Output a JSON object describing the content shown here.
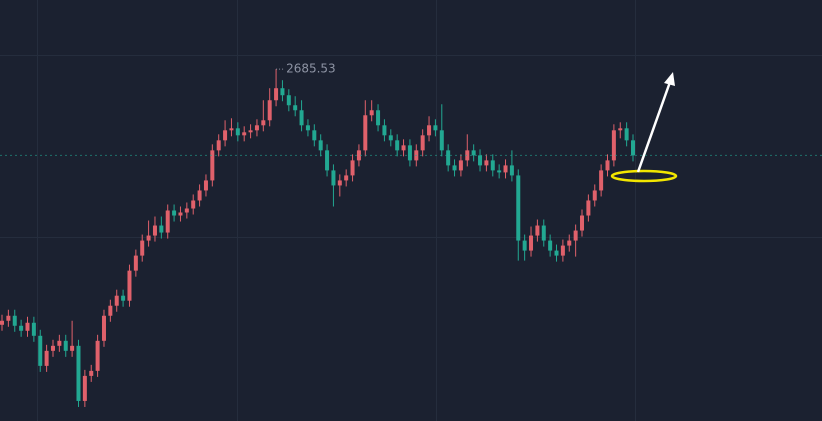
{
  "chart_data": {
    "type": "candlestick",
    "ylim": [
      2510,
      2720
    ],
    "up_color": "#e0616b",
    "down_color": "#22a892",
    "open": [
      2558,
      2560,
      2562.5,
      2557.5,
      2555,
      2559,
      2552.5,
      2537.5,
      2545,
      2547.5,
      2550,
      2545,
      2547.5,
      2520,
      2532.5,
      2535,
      2550,
      2562.5,
      2567.5,
      2572.5,
      2570,
      2585,
      2592.5,
      2600,
      2602.5,
      2607.5,
      2604,
      2615,
      2612.5,
      2614,
      2616,
      2620,
      2625,
      2630,
      2645,
      2650,
      2655,
      2656,
      2652.5,
      2654,
      2655,
      2657.5,
      2660,
      2670,
      2676,
      2672.5,
      2667.5,
      2665,
      2657.5,
      2655,
      2650,
      2645,
      2635,
      2627.5,
      2630,
      2632.5,
      2640,
      2645,
      2662.5,
      2665,
      2657.5,
      2652.5,
      2650,
      2645,
      2647.5,
      2640,
      2645,
      2652.5,
      2657.5,
      2655,
      2645,
      2637.5,
      2635,
      2640,
      2645,
      2642.5,
      2637.5,
      2640,
      2635,
      2634,
      2637.5,
      2632.5,
      2600,
      2595,
      2602.5,
      2607.5,
      2600,
      2595,
      2592.5,
      2597.5,
      2600,
      2605,
      2612.5,
      2620,
      2625,
      2635,
      2640,
      2655,
      2656,
      2650
    ],
    "high": [
      2563,
      2565.5,
      2565.5,
      2560.5,
      2562,
      2562,
      2555.5,
      2548,
      2550.5,
      2553,
      2553,
      2560,
      2550.5,
      2535.5,
      2538,
      2553,
      2565.5,
      2570.5,
      2575.5,
      2575.5,
      2588,
      2595.5,
      2603,
      2610,
      2612,
      2612,
      2618,
      2618,
      2617,
      2619,
      2623,
      2628,
      2633,
      2648,
      2653,
      2660,
      2661,
      2659,
      2657,
      2658,
      2660.5,
      2670,
      2676,
      2685.53,
      2680,
      2675.5,
      2672,
      2670,
      2660.5,
      2658,
      2653,
      2648,
      2638,
      2633,
      2635.5,
      2643,
      2648,
      2670,
      2670,
      2668,
      2660.5,
      2655.5,
      2653,
      2650.5,
      2650.5,
      2648,
      2655.5,
      2662,
      2660.5,
      2668,
      2648,
      2640.5,
      2643,
      2653,
      2648,
      2645.5,
      2643,
      2643,
      2638,
      2640.5,
      2645,
      2635.5,
      2603,
      2607,
      2610.5,
      2610.5,
      2603,
      2598,
      2600.5,
      2603,
      2608,
      2615.5,
      2623,
      2628,
      2638,
      2643,
      2658,
      2659,
      2659,
      2653
    ],
    "low": [
      2555,
      2557,
      2554.5,
      2552,
      2552,
      2549.5,
      2534.5,
      2534.5,
      2542,
      2544.5,
      2542,
      2542,
      2517,
      2517,
      2529.5,
      2532,
      2547,
      2559.5,
      2564.5,
      2567,
      2567,
      2582,
      2589.5,
      2597,
      2599.5,
      2601,
      2601,
      2609.5,
      2609.5,
      2611,
      2613,
      2617,
      2622,
      2627,
      2642,
      2647,
      2652,
      2649.5,
      2649.5,
      2651,
      2652,
      2654.5,
      2657,
      2667,
      2669.5,
      2664.5,
      2662,
      2654.5,
      2652,
      2647,
      2642,
      2632,
      2617,
      2622,
      2627,
      2629.5,
      2637,
      2642,
      2659.5,
      2654.5,
      2649.5,
      2647,
      2642,
      2642,
      2637,
      2637,
      2642,
      2649.5,
      2652,
      2642,
      2634.5,
      2632,
      2632,
      2637,
      2639.5,
      2634.5,
      2634.5,
      2632,
      2631,
      2631,
      2629.5,
      2590,
      2590,
      2592,
      2599.5,
      2597,
      2592,
      2589.5,
      2589.5,
      2594.5,
      2592,
      2602,
      2609.5,
      2617,
      2622,
      2632,
      2637,
      2651,
      2647,
      2639.5
    ],
    "close": [
      2560,
      2562.5,
      2557.5,
      2555,
      2559,
      2552.5,
      2537.5,
      2545,
      2547.5,
      2550,
      2545,
      2547.5,
      2520,
      2532.5,
      2535,
      2550,
      2562.5,
      2567.5,
      2572.5,
      2570,
      2585,
      2592.5,
      2600,
      2602.5,
      2607.5,
      2604,
      2615,
      2612.5,
      2614,
      2616,
      2620,
      2625,
      2630,
      2645,
      2650,
      2655,
      2656,
      2652.5,
      2654,
      2655,
      2657.5,
      2660,
      2670,
      2676,
      2672.5,
      2667.5,
      2665,
      2657.5,
      2655,
      2650,
      2645,
      2635,
      2627.5,
      2630,
      2632.5,
      2640,
      2645,
      2662.5,
      2665,
      2657.5,
      2652.5,
      2650,
      2645,
      2647.5,
      2640,
      2645,
      2652.5,
      2657.5,
      2655,
      2645,
      2637.5,
      2635,
      2640,
      2645,
      2642.5,
      2637.5,
      2640,
      2635,
      2634,
      2637.5,
      2632.5,
      2600,
      2595,
      2602.5,
      2607.5,
      2600,
      2595,
      2592.5,
      2597.5,
      2600,
      2605,
      2612.5,
      2620,
      2625,
      2635,
      2640,
      2655,
      2656,
      2650,
      2642.5
    ]
  }
}
